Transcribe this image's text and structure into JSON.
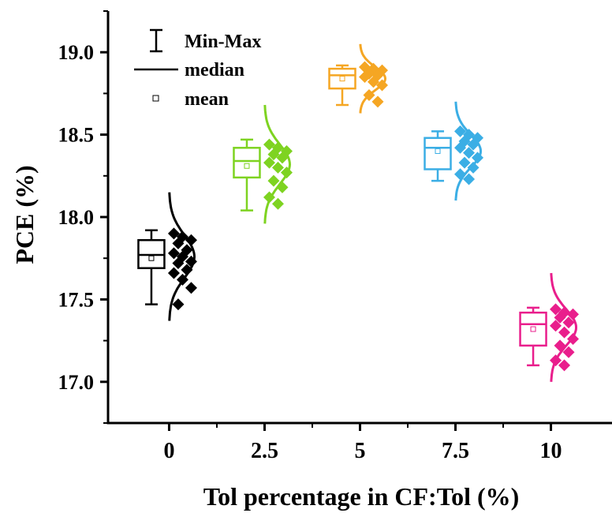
{
  "chart_data": {
    "type": "box",
    "xlabel": "Tol percentage in CF:Tol (%)",
    "ylabel": "PCE (%)",
    "categories": [
      "0",
      "2.5",
      "5",
      "7.5",
      "10"
    ],
    "x_values": [
      0,
      2.5,
      5,
      7.5,
      10
    ],
    "xlim": [
      -1.6,
      11.6
    ],
    "ylim": [
      16.75,
      19.25
    ],
    "yticks": [
      17.0,
      17.5,
      18.0,
      18.5,
      19.0
    ],
    "ytick_labels": [
      "17.0",
      "17.5",
      "18.0",
      "18.5",
      "19.0"
    ],
    "grid": false,
    "legend": {
      "position": "top-left",
      "items": [
        {
          "symbol": "whisker",
          "label": "Min-Max"
        },
        {
          "symbol": "line",
          "label": "median"
        },
        {
          "symbol": "square",
          "label": "mean"
        }
      ]
    },
    "series": [
      {
        "category": "0",
        "color": "#000000",
        "min": 17.47,
        "q1": 17.69,
        "median": 17.77,
        "q3": 17.86,
        "max": 17.92,
        "mean": 17.75,
        "points": [
          17.9,
          17.88,
          17.86,
          17.84,
          17.8,
          17.78,
          17.76,
          17.73,
          17.72,
          17.68,
          17.66,
          17.62,
          17.57,
          17.47
        ],
        "dist_mean": 17.76,
        "dist_sd": 0.13
      },
      {
        "category": "2.5",
        "color": "#7ED321",
        "min": 18.04,
        "q1": 18.24,
        "median": 18.34,
        "q3": 18.42,
        "max": 18.47,
        "mean": 18.31,
        "points": [
          18.44,
          18.42,
          18.4,
          18.38,
          18.36,
          18.33,
          18.3,
          18.27,
          18.22,
          18.18,
          18.12,
          18.08
        ],
        "dist_mean": 18.32,
        "dist_sd": 0.12
      },
      {
        "category": "5",
        "color": "#F5A623",
        "min": 18.68,
        "q1": 18.78,
        "median": 18.86,
        "q3": 18.9,
        "max": 18.92,
        "mean": 18.84,
        "points": [
          18.91,
          18.9,
          18.89,
          18.87,
          18.86,
          18.85,
          18.82,
          18.8,
          18.74,
          18.7
        ],
        "dist_mean": 18.84,
        "dist_sd": 0.07
      },
      {
        "category": "7.5",
        "color": "#3BAEE5",
        "min": 18.22,
        "q1": 18.29,
        "median": 18.42,
        "q3": 18.48,
        "max": 18.52,
        "mean": 18.4,
        "points": [
          18.52,
          18.5,
          18.48,
          18.46,
          18.44,
          18.42,
          18.39,
          18.36,
          18.33,
          18.3,
          18.26,
          18.23
        ],
        "dist_mean": 18.4,
        "dist_sd": 0.1
      },
      {
        "category": "10",
        "color": "#E91E8C",
        "min": 17.1,
        "q1": 17.22,
        "median": 17.35,
        "q3": 17.42,
        "max": 17.45,
        "mean": 17.32,
        "points": [
          17.44,
          17.42,
          17.41,
          17.39,
          17.36,
          17.34,
          17.3,
          17.26,
          17.22,
          17.18,
          17.13,
          17.1
        ],
        "dist_mean": 17.33,
        "dist_sd": 0.11
      }
    ]
  }
}
